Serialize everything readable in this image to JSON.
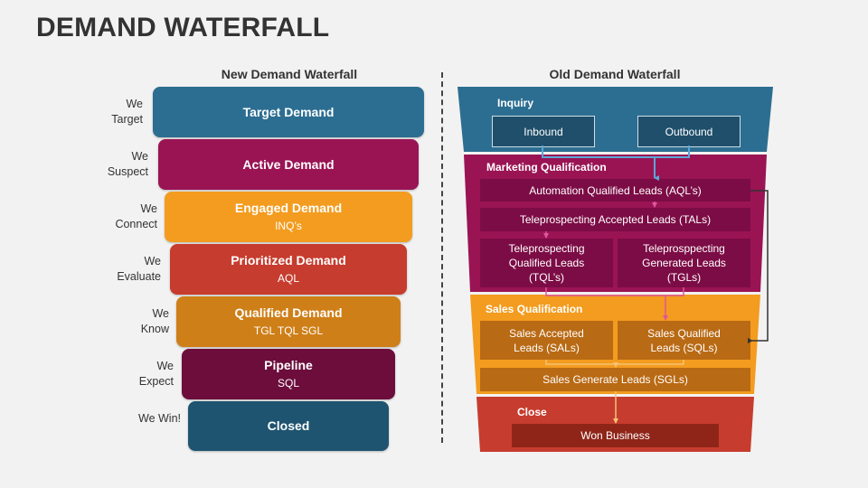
{
  "title": "DEMAND WATERFALL",
  "new_waterfall": {
    "heading": "New Demand Waterfall",
    "stages": [
      {
        "label": "We\nTarget",
        "name": "Target Demand",
        "sub": "",
        "color": "#2c6e91"
      },
      {
        "label": "We\nSuspect",
        "name": "Active Demand",
        "sub": "",
        "color": "#9a1454"
      },
      {
        "label": "We\nConnect",
        "name": "Engaged Demand",
        "sub": "INQ’s",
        "color": "#f39c1f"
      },
      {
        "label": "We\nEvaluate",
        "name": "Prioritized Demand",
        "sub": "AQL",
        "color": "#c63c2e"
      },
      {
        "label": "We\nKnow",
        "name": "Qualified Demand",
        "sub": "TGL TQL SGL",
        "color": "#cf7f18"
      },
      {
        "label": "We\nExpect",
        "name": "Pipeline",
        "sub": "SQL",
        "color": "#6c0d3c"
      },
      {
        "label": "We Win!",
        "name": "Closed",
        "sub": "",
        "color": "#1f5470"
      }
    ]
  },
  "old_waterfall": {
    "heading": "Old Demand Waterfall",
    "sections": {
      "inquiry": "Inquiry",
      "marketing": "Marketing Qualification",
      "sales": "Sales Qualification",
      "close": "Close"
    },
    "boxes": {
      "inbound": "Inbound",
      "outbound": "Outbound",
      "aql": "Automation Qualified Leads (AQL’s)",
      "tal": "Teleprospecting Accepted Leads (TALs)",
      "tql": "Teleprospecting\nQualified Leads\n(TQL’s)",
      "tgl": "Teleprosppecting\nGenerated Leads\n(TGLs)",
      "sal": "Sales Accepted\nLeads (SALs)",
      "sql": "Sales Qualified\nLeads (SQLs)",
      "sgl": "Sales Generate Leads (SGLs)",
      "won": "Won Business"
    },
    "colors": {
      "inquiry": "#2c6e91",
      "marketing": "#9a1454",
      "sales": "#f39c1f",
      "close": "#c63c2e",
      "arrow_blue": "#5aa7d6",
      "arrow_pink": "#e0559c",
      "arrow_orange": "#f6c173",
      "arrow_dark": "#333333"
    }
  }
}
